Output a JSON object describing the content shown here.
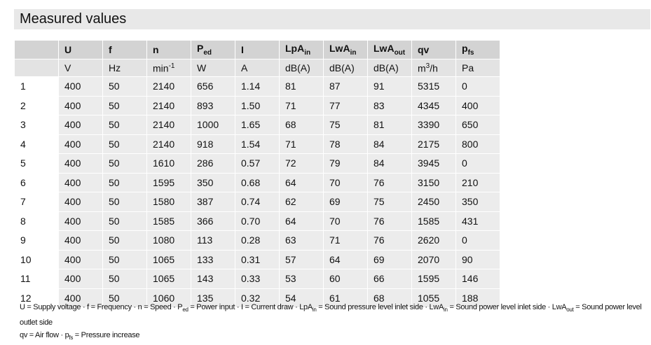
{
  "title": "Measured values",
  "table": {
    "headers": [
      [
        {
          "text": "U"
        }
      ],
      [
        {
          "text": "f"
        }
      ],
      [
        {
          "text": "n"
        }
      ],
      [
        {
          "text": "P"
        },
        {
          "text": "ed",
          "pos": "sub"
        }
      ],
      [
        {
          "text": "I"
        }
      ],
      [
        {
          "text": "LpA"
        },
        {
          "text": "in",
          "pos": "sub"
        }
      ],
      [
        {
          "text": "LwA"
        },
        {
          "text": "in",
          "pos": "sub"
        }
      ],
      [
        {
          "text": "LwA"
        },
        {
          "text": "out",
          "pos": "sub"
        }
      ],
      [
        {
          "text": "qv"
        }
      ],
      [
        {
          "text": "p"
        },
        {
          "text": "fs",
          "pos": "sub"
        }
      ]
    ],
    "units": [
      [
        {
          "text": "V"
        }
      ],
      [
        {
          "text": "Hz"
        }
      ],
      [
        {
          "text": "min"
        },
        {
          "text": "-1",
          "pos": "sup"
        }
      ],
      [
        {
          "text": "W"
        }
      ],
      [
        {
          "text": "A"
        }
      ],
      [
        {
          "text": "dB(A)"
        }
      ],
      [
        {
          "text": "dB(A)"
        }
      ],
      [
        {
          "text": "dB(A)"
        }
      ],
      [
        {
          "text": "m"
        },
        {
          "text": "3",
          "pos": "sup"
        },
        {
          "text": "/h"
        }
      ],
      [
        {
          "text": "Pa"
        }
      ]
    ],
    "rows": [
      [
        "1",
        "400",
        "50",
        "2140",
        "656",
        "1.14",
        "81",
        "87",
        "91",
        "5315",
        "0"
      ],
      [
        "2",
        "400",
        "50",
        "2140",
        "893",
        "1.50",
        "71",
        "77",
        "83",
        "4345",
        "400"
      ],
      [
        "3",
        "400",
        "50",
        "2140",
        "1000",
        "1.65",
        "68",
        "75",
        "81",
        "3390",
        "650"
      ],
      [
        "4",
        "400",
        "50",
        "2140",
        "918",
        "1.54",
        "71",
        "78",
        "84",
        "2175",
        "800"
      ],
      [
        "5",
        "400",
        "50",
        "1610",
        "286",
        "0.57",
        "72",
        "79",
        "84",
        "3945",
        "0"
      ],
      [
        "6",
        "400",
        "50",
        "1595",
        "350",
        "0.68",
        "64",
        "70",
        "76",
        "3150",
        "210"
      ],
      [
        "7",
        "400",
        "50",
        "1580",
        "387",
        "0.74",
        "62",
        "69",
        "75",
        "2450",
        "350"
      ],
      [
        "8",
        "400",
        "50",
        "1585",
        "366",
        "0.70",
        "64",
        "70",
        "76",
        "1585",
        "431"
      ],
      [
        "9",
        "400",
        "50",
        "1080",
        "113",
        "0.28",
        "63",
        "71",
        "76",
        "2620",
        "0"
      ],
      [
        "10",
        "400",
        "50",
        "1065",
        "133",
        "0.31",
        "57",
        "64",
        "69",
        "2070",
        "90"
      ],
      [
        "11",
        "400",
        "50",
        "1065",
        "143",
        "0.33",
        "53",
        "60",
        "66",
        "1595",
        "146"
      ],
      [
        "12",
        "400",
        "50",
        "1060",
        "135",
        "0.32",
        "54",
        "61",
        "68",
        "1055",
        "188"
      ]
    ]
  },
  "footnote": [
    [
      {
        "text": "U = Supply voltage · f = Frequency · n = Speed · P"
      },
      {
        "text": "ed",
        "pos": "sub"
      },
      {
        "text": " = Power input · I = Current draw · LpA"
      },
      {
        "text": "in",
        "pos": "sub"
      },
      {
        "text": " = Sound pressure level inlet side · LwA"
      },
      {
        "text": "in",
        "pos": "sub"
      },
      {
        "text": " = Sound power level inlet side · LwA"
      },
      {
        "text": "out",
        "pos": "sub"
      },
      {
        "text": " = Sound power level outlet side"
      }
    ],
    [
      {
        "text": "qv = Air flow · p"
      },
      {
        "text": "fs",
        "pos": "sub"
      },
      {
        "text": " = Pressure increase"
      }
    ]
  ]
}
